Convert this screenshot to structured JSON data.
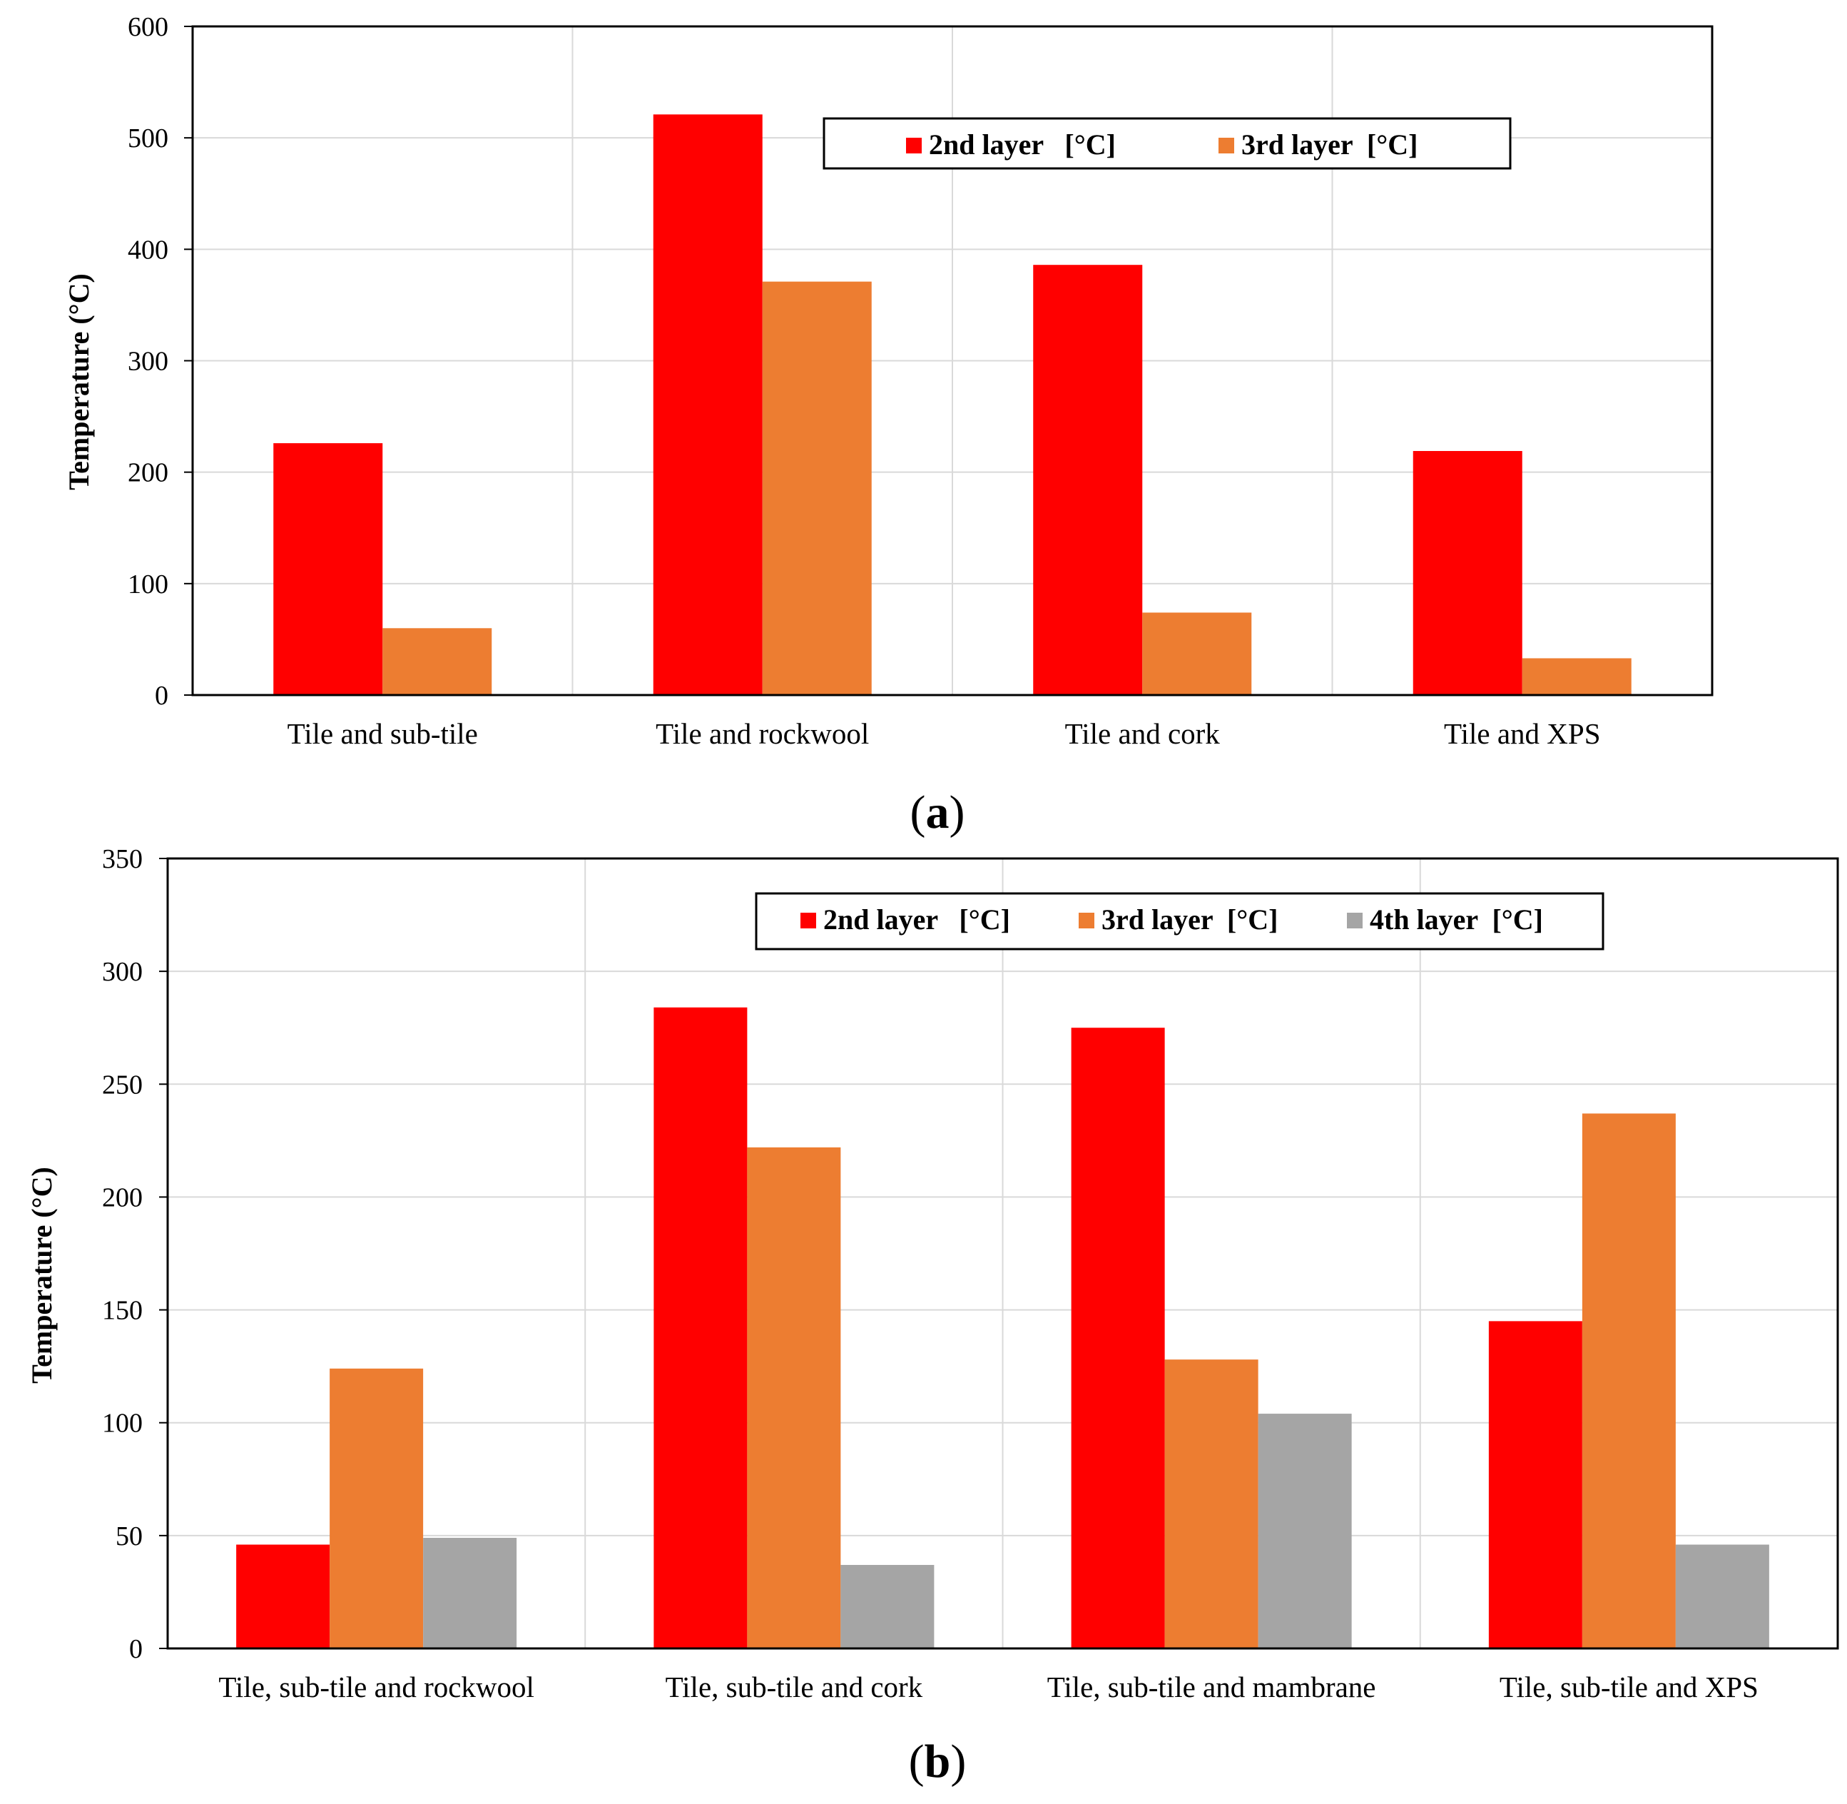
{
  "chart_data": [
    {
      "type": "bar",
      "panel": "a",
      "panel_label_open": "(",
      "panel_label_letter": "a",
      "panel_label_close": ")",
      "ylabel": "Temperature (°C)",
      "xlabel": "",
      "ylim": [
        0,
        600
      ],
      "yticks": [
        0,
        100,
        200,
        300,
        400,
        500,
        600
      ],
      "grid": true,
      "legend_position": "top-right",
      "categories": [
        "Tile and sub-tile",
        "Tile and rockwool",
        "Tile and cork",
        "Tile and XPS"
      ],
      "series": [
        {
          "name": "2nd layer   [°C]",
          "color": "#ff0000",
          "values": [
            226,
            521,
            386,
            219
          ]
        },
        {
          "name": "3rd layer  [°C]",
          "color": "#ed7d31",
          "values": [
            60,
            371,
            74,
            33
          ]
        }
      ]
    },
    {
      "type": "bar",
      "panel": "b",
      "panel_label_open": "(",
      "panel_label_letter": "b",
      "panel_label_close": ")",
      "ylabel": "Temperature (°C)",
      "xlabel": "",
      "ylim": [
        0,
        350
      ],
      "yticks": [
        0,
        50,
        100,
        150,
        200,
        250,
        300,
        350
      ],
      "grid": true,
      "legend_position": "top-right",
      "categories": [
        "Tile, sub-tile and rockwool",
        "Tile, sub-tile and cork",
        "Tile, sub-tile and mambrane",
        "Tile, sub-tile and XPS"
      ],
      "series": [
        {
          "name": "2nd layer   [°C]",
          "color": "#ff0000",
          "values": [
            46,
            284,
            275,
            145
          ]
        },
        {
          "name": "3rd layer  [°C]",
          "color": "#ed7d31",
          "values": [
            124,
            222,
            128,
            237
          ]
        },
        {
          "name": "4th layer  [°C]",
          "color": "#a5a5a5",
          "values": [
            49,
            37,
            104,
            46
          ]
        }
      ]
    }
  ]
}
